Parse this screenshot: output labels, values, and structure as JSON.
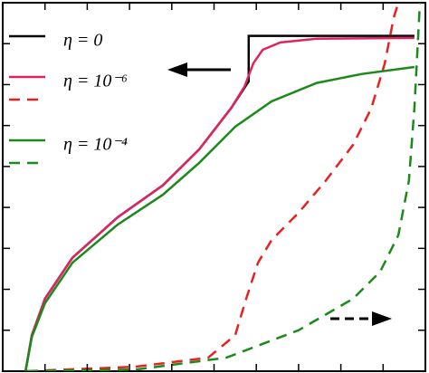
{
  "chart_data": {
    "type": "line",
    "xlim": [
      0,
      10
    ],
    "xticks": [
      1,
      2,
      3,
      4,
      5,
      6,
      7,
      8,
      9
    ],
    "ylim": [
      0,
      9
    ],
    "yticks": [
      1,
      2,
      3,
      4,
      5,
      6,
      7,
      8
    ],
    "y2lim": [
      0,
      9
    ],
    "y2ticks": [
      1,
      2,
      3,
      4,
      5,
      6,
      7,
      8
    ],
    "legend": "upper left",
    "series": [
      {
        "name": "η = 0",
        "color": "#000000",
        "dash": false,
        "x": [
          0.54,
          0.69,
          1.0,
          1.65,
          2.72,
          3.79,
          4.65,
          5.4,
          5.82,
          5.82,
          9.74
        ],
        "values": [
          0,
          0.88,
          1.77,
          2.77,
          3.76,
          4.54,
          5.42,
          6.42,
          7.08,
          8.19,
          8.19
        ]
      },
      {
        "name": "η = 10⁻⁶",
        "color": "#e0245e",
        "dash": false,
        "x": [
          0.54,
          0.69,
          1.0,
          1.65,
          2.72,
          3.79,
          4.65,
          5.4,
          5.72,
          5.93,
          6.15,
          6.57,
          7.43,
          9.74
        ],
        "values": [
          0,
          0.88,
          1.77,
          2.77,
          3.76,
          4.54,
          5.42,
          6.42,
          6.95,
          7.52,
          7.85,
          8.03,
          8.12,
          8.14
        ]
      },
      {
        "color": "#e82020",
        "dash": true,
        "axis": "y2",
        "x": [
          0.58,
          3.15,
          4.86,
          5.5,
          5.76,
          6.04,
          6.36,
          7.0,
          7.64,
          8.29,
          8.72,
          9.04,
          9.25,
          9.36
        ],
        "values": [
          0,
          0.11,
          0.33,
          0.88,
          1.77,
          2.65,
          3.2,
          3.87,
          4.65,
          5.53,
          6.42,
          7.52,
          8.63,
          9.0
        ]
      },
      {
        "name": "η = 10⁻⁴",
        "color": "#1a8a1a",
        "dash": false,
        "x": [
          0.54,
          0.69,
          1.0,
          1.65,
          2.72,
          3.79,
          4.65,
          5.5,
          6.36,
          7.43,
          8.5,
          9.74
        ],
        "values": [
          0,
          0.84,
          1.66,
          2.65,
          3.58,
          4.31,
          5.09,
          5.97,
          6.59,
          7.04,
          7.26,
          7.43
        ]
      },
      {
        "color": "#1a8a1a",
        "dash": true,
        "axis": "y2",
        "x": [
          0.58,
          3.15,
          5.29,
          7.0,
          8.29,
          8.93,
          9.36,
          9.61,
          9.74,
          9.83,
          9.87
        ],
        "values": [
          0,
          0.04,
          0.33,
          1.0,
          1.77,
          2.43,
          3.32,
          4.65,
          6.42,
          8.19,
          9.0
        ]
      }
    ]
  }
}
